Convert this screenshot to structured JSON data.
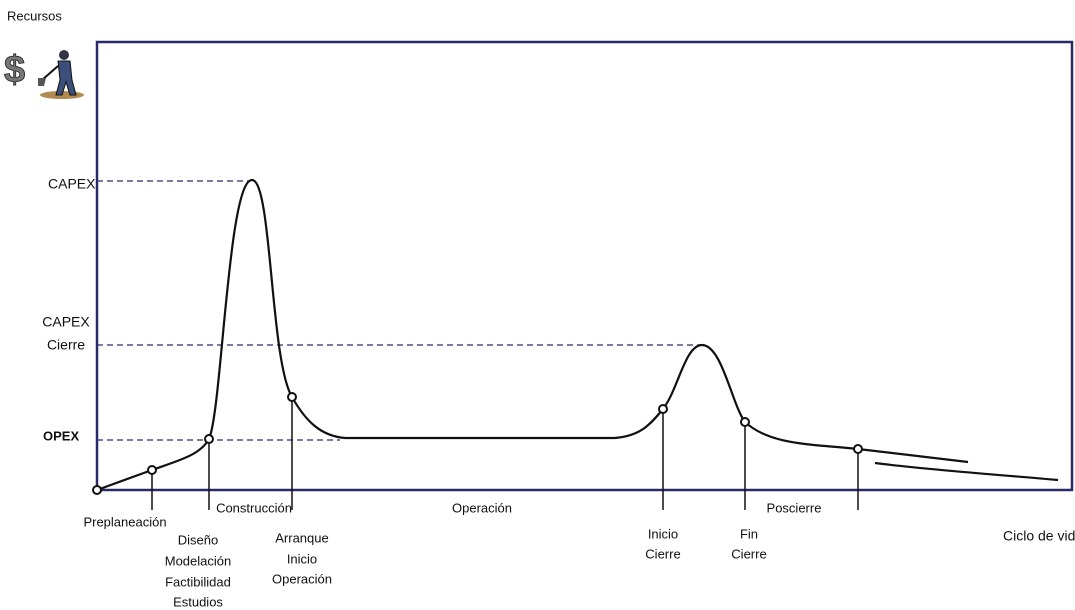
{
  "axis": {
    "y_label": "Recursos",
    "x_label": "Ciclo de vida"
  },
  "levels": [
    {
      "lines": [
        "CAPEX"
      ]
    },
    {
      "lines": [
        "CAPEX",
        "Cierre"
      ]
    },
    {
      "lines": [
        "OPEX"
      ]
    }
  ],
  "phases": [
    "Construcción",
    "Operación",
    "Poscierre"
  ],
  "milestones": [
    {
      "lines": [
        "Preplaneación"
      ]
    },
    {
      "lines": [
        "Diseño",
        "Modelación",
        "Factibilidad",
        "Estudios"
      ]
    },
    {
      "lines": [
        "Arranque",
        "Inicio",
        "Operación"
      ]
    },
    {
      "lines": [
        "Inicio",
        "Cierre"
      ]
    },
    {
      "lines": [
        "Fin",
        "Cierre"
      ]
    }
  ]
}
